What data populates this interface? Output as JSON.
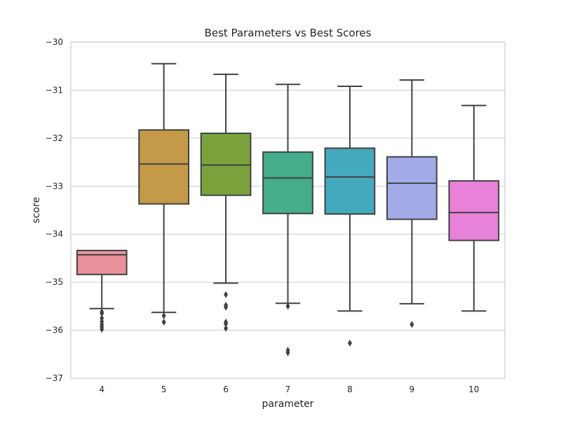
{
  "chart_data": {
    "type": "box",
    "title": "Best Parameters vs Best Scores",
    "xlabel": "parameter",
    "ylabel": "score",
    "ylim": [
      -37,
      -30
    ],
    "yticks": [
      -30,
      -31,
      -32,
      -33,
      -34,
      -35,
      -36,
      -37
    ],
    "ytick_labels": [
      "−30",
      "−31",
      "−32",
      "−33",
      "−34",
      "−35",
      "−36",
      "−37"
    ],
    "grid": true,
    "categories": [
      "4",
      "5",
      "6",
      "7",
      "8",
      "9",
      "10"
    ],
    "boxes": [
      {
        "category": "4",
        "color": "#e8919a",
        "whisker_low": -35.55,
        "q1": -34.84,
        "median": -34.43,
        "q3": -34.34,
        "whisker_high": -34.34,
        "fliers": [
          -35.62,
          -35.65,
          -35.75,
          -35.82,
          -35.88,
          -35.93,
          -35.98
        ]
      },
      {
        "category": "5",
        "color": "#c49a48",
        "whisker_low": -35.63,
        "q1": -33.37,
        "median": -32.54,
        "q3": -31.83,
        "whisker_high": -30.45,
        "fliers": [
          -35.7,
          -35.83
        ]
      },
      {
        "category": "6",
        "color": "#7ba33d",
        "whisker_low": -35.02,
        "q1": -33.19,
        "median": -32.56,
        "q3": -31.9,
        "whisker_high": -30.67,
        "fliers": [
          -35.26,
          -35.48,
          -35.52,
          -35.83,
          -35.87,
          -35.96
        ]
      },
      {
        "category": "7",
        "color": "#44ad8b",
        "whisker_low": -35.44,
        "q1": -33.57,
        "median": -32.83,
        "q3": -32.29,
        "whisker_high": -30.88,
        "fliers": [
          -35.5,
          -36.42,
          -36.47
        ]
      },
      {
        "category": "8",
        "color": "#44a9bd",
        "whisker_low": -35.6,
        "q1": -33.58,
        "median": -32.81,
        "q3": -32.21,
        "whisker_high": -30.92,
        "fliers": [
          -36.27
        ]
      },
      {
        "category": "9",
        "color": "#a2abe8",
        "whisker_low": -35.45,
        "q1": -33.69,
        "median": -32.94,
        "q3": -32.39,
        "whisker_high": -30.79,
        "fliers": [
          -35.88
        ]
      },
      {
        "category": "10",
        "color": "#e881d8",
        "whisker_low": -35.6,
        "q1": -34.13,
        "median": -33.55,
        "q3": -32.89,
        "whisker_high": -31.32,
        "fliers": []
      }
    ]
  }
}
